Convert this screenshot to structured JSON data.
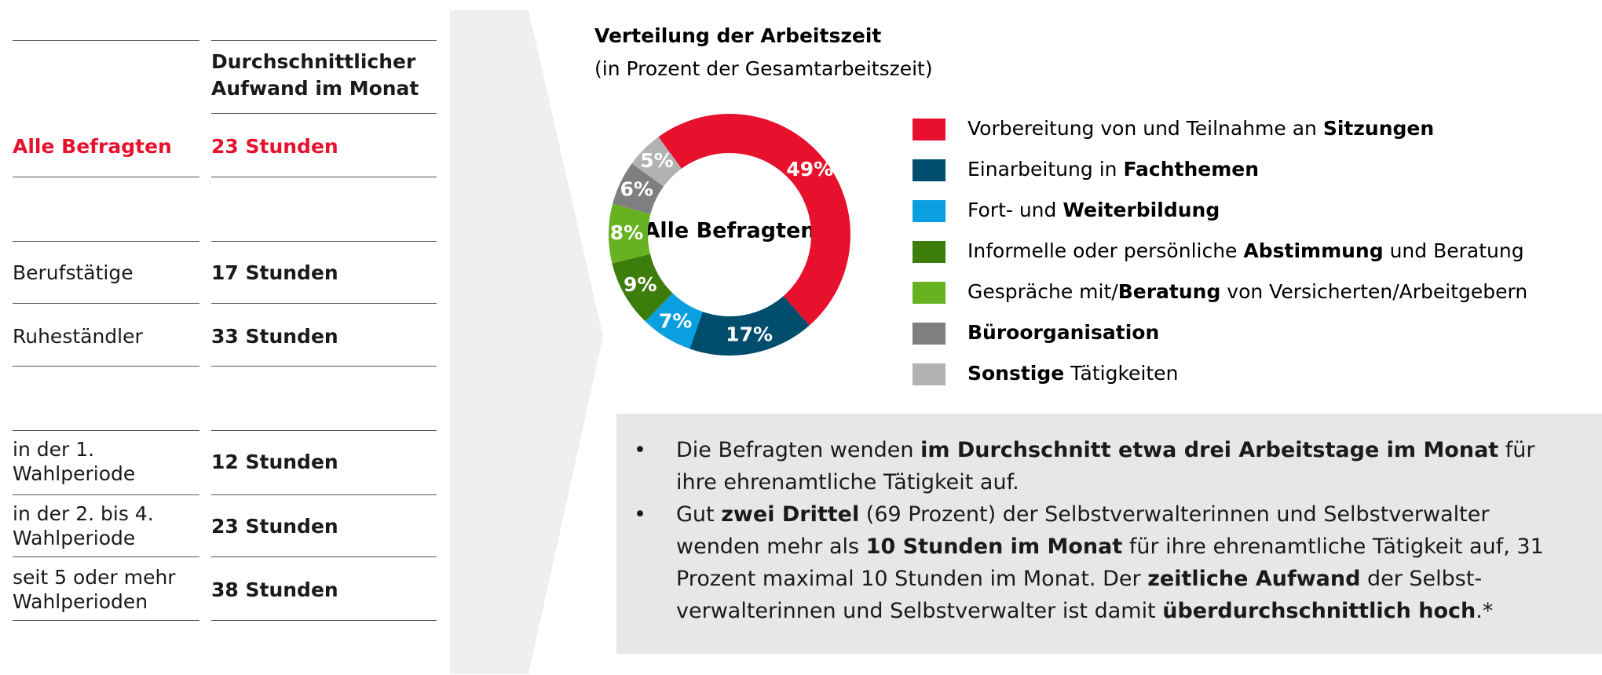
{
  "table": {
    "header": "Durchschnittlicher Aufwand im Monat",
    "rows": [
      [
        "Alle Befragten",
        "23 Stunden"
      ],
      [
        "Berufstätige",
        "17 Stunden"
      ],
      [
        "Ruheständler",
        "33 Stunden"
      ],
      [
        "in der 1. Wahlperiode",
        "12 Stunden"
      ],
      [
        "in der 2. bis 4. Wahlperiode",
        "23 Stunden"
      ],
      [
        "seit 5 oder mehr Wahlperioden",
        "38 Stunden"
      ]
    ]
  },
  "chart_data": {
    "type": "donut",
    "title": "Verteilung der Arbeitszeit",
    "subtitle": "(in Prozent der Gesamtarbeitszeit)",
    "center_label": "Alle Befragten",
    "categories": [
      {
        "parts": [
          {
            "text": "Vorbereitung von und Teilnahme an "
          },
          {
            "text": "Sitzungen",
            "bold": true
          }
        ]
      },
      {
        "parts": [
          {
            "text": "Einarbeitung in "
          },
          {
            "text": "Fachthemen",
            "bold": true
          }
        ]
      },
      {
        "parts": [
          {
            "text": "Fort- und "
          },
          {
            "text": "Weiterbildung",
            "bold": true
          }
        ]
      },
      {
        "parts": [
          {
            "text": "Informelle oder persönliche "
          },
          {
            "text": "Abstimmung",
            "bold": true
          },
          {
            "text": " und Beratung"
          }
        ]
      },
      {
        "parts": [
          {
            "text": "Gespräche mit/"
          },
          {
            "text": "Beratung",
            "bold": true
          },
          {
            "text": " von Versicherten/Arbeitgebern"
          }
        ]
      },
      {
        "parts": [
          {
            "text": "Büroorganisation",
            "bold": true
          }
        ]
      },
      {
        "parts": [
          {
            "text": "Sonstige",
            "bold": true
          },
          {
            "text": " Tätigkeiten"
          }
        ]
      }
    ],
    "values": [
      49,
      17,
      7,
      9,
      8,
      6,
      5
    ],
    "value_labels": [
      "49%",
      "17%",
      "7%",
      "9%",
      "8%",
      "6%",
      "5%"
    ],
    "colors": [
      "#e8112d",
      "#004d6e",
      "#0a9fe0",
      "#3d7d0c",
      "#66b220",
      "#7f7f7f",
      "#b2b2b2"
    ]
  },
  "bullets": [
    {
      "parts": [
        {
          "text": "Die Befragten wenden "
        },
        {
          "text": "im Durchschnitt etwa drei Arbeitstage im Monat",
          "bold": true
        },
        {
          "text": " für ihre ehrenamtliche Tätigkeit auf."
        }
      ]
    },
    {
      "parts": [
        {
          "text": "Gut "
        },
        {
          "text": "zwei Drittel",
          "bold": true
        },
        {
          "text": " (69 Prozent) der Selbstverwalterinnen und Selbstverwalter wenden mehr als "
        },
        {
          "text": "10 Stunden im Monat",
          "bold": true
        },
        {
          "text": "  für ihre ehrenamtliche Tätigkeit auf, 31 Prozent maximal 10 Stunden im Monat. Der "
        },
        {
          "text": "zeitliche Aufwand",
          "bold": true
        },
        {
          "text": " der Selbst-verwalterinnen und Selbstverwalter ist damit "
        },
        {
          "text": "überdurchschnittlich hoch",
          "bold": true
        },
        {
          "text": ".*"
        }
      ]
    }
  ]
}
